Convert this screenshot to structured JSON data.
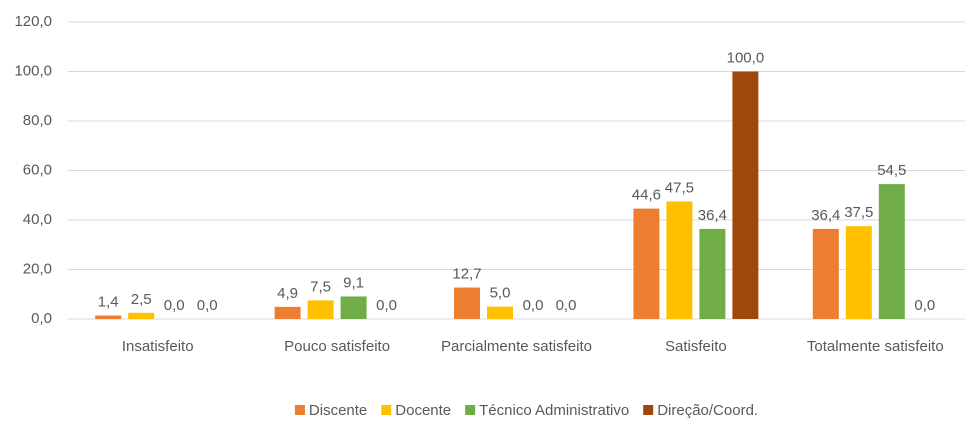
{
  "chart_data": {
    "type": "bar",
    "categories": [
      "Insatisfeito",
      "Pouco satisfeito",
      "Parcialmente satisfeito",
      "Satisfeito",
      "Totalmente satisfeito"
    ],
    "series": [
      {
        "name": "Discente",
        "color": "#ed7d31",
        "values": [
          1.4,
          4.9,
          12.7,
          44.6,
          36.4
        ],
        "value_labels": [
          "1,4",
          "4,9",
          "12,7",
          "44,6",
          "36,4"
        ]
      },
      {
        "name": "Docente",
        "color": "#ffc000",
        "values": [
          2.5,
          7.5,
          5.0,
          47.5,
          37.5
        ],
        "value_labels": [
          "2,5",
          "7,5",
          "5,0",
          "47,5",
          "37,5"
        ]
      },
      {
        "name": "Técnico Administrativo",
        "color": "#70ad47",
        "values": [
          0.0,
          9.1,
          0.0,
          36.4,
          54.5
        ],
        "value_labels": [
          "0,0",
          "9,1",
          "0,0",
          "36,4",
          "54,5"
        ]
      },
      {
        "name": "Direção/Coord.",
        "color": "#9e480e",
        "values": [
          0.0,
          0.0,
          0.0,
          100.0,
          0.0
        ],
        "value_labels": [
          "0,0",
          "0,0",
          "0,0",
          "100,0",
          "0,0"
        ]
      }
    ],
    "ylim": [
      0,
      120
    ],
    "yticks": [
      {
        "value": 0,
        "label": "0,0"
      },
      {
        "value": 20,
        "label": "20,0"
      },
      {
        "value": 40,
        "label": "40,0"
      },
      {
        "value": 60,
        "label": "60,0"
      },
      {
        "value": 80,
        "label": "80,0"
      },
      {
        "value": 100,
        "label": "100,0"
      },
      {
        "value": 120,
        "label": "120,0"
      }
    ],
    "grid": true
  }
}
